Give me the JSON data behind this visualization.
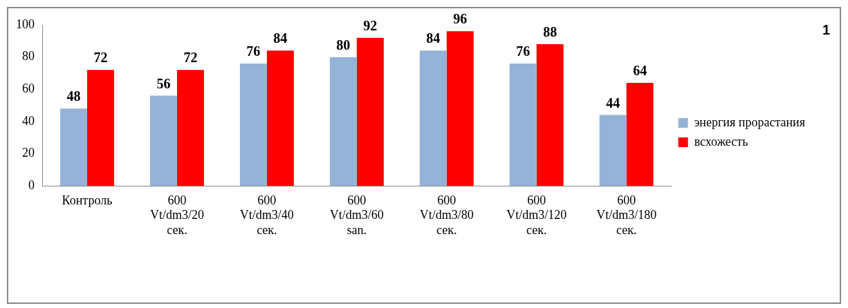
{
  "chart_data": {
    "type": "bar",
    "categories": [
      "Контроль",
      "600\nVt/dm3/20\nсек.",
      "600\nVt/dm3/40\nсек.",
      "600\nVt/dm3/60\nsan.",
      "600\nVt/dm3/80\nсек.",
      "600\nVt/dm3/120\nсек.",
      "600\nVt/dm3/180\nсек."
    ],
    "series": [
      {
        "name": "энергия прорастания",
        "color": "#95b3d7",
        "values": [
          48,
          56,
          76,
          80,
          84,
          76,
          44
        ]
      },
      {
        "name": "всхожесть",
        "color": "#ff0000",
        "values": [
          72,
          72,
          84,
          92,
          96,
          88,
          64
        ]
      }
    ],
    "ylim": [
      0,
      100
    ],
    "yticks": [
      0,
      20,
      40,
      60,
      80,
      100
    ],
    "grid": false,
    "legend": "right",
    "data_labels": true,
    "annotations": [
      "1"
    ]
  }
}
